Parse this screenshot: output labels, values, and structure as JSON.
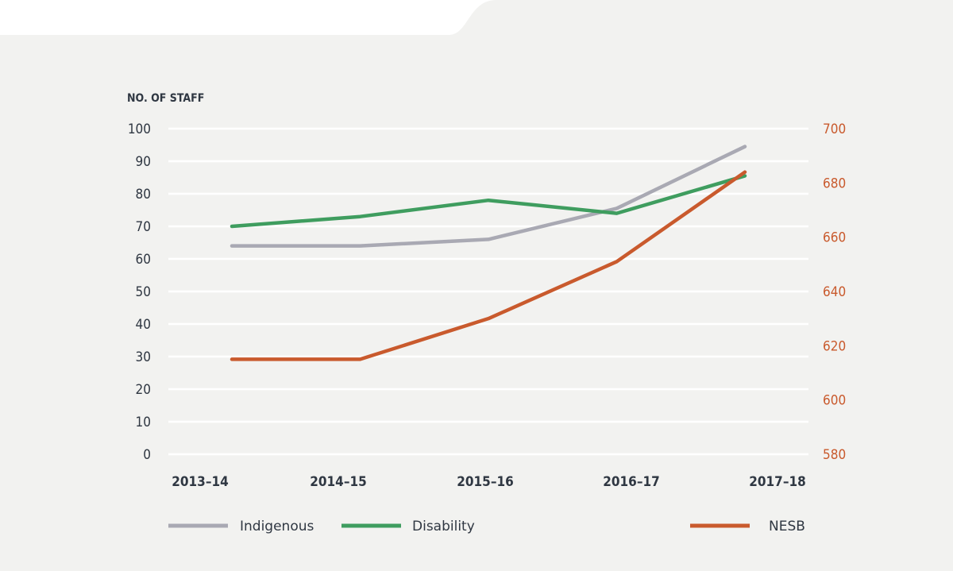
{
  "chart_data": {
    "type": "line",
    "title": "",
    "ylabel_left": "NO. OF STAFF",
    "xlabel": "",
    "categories": [
      "2013–14",
      "2014–15",
      "2015–16",
      "2016–17",
      "2017–18"
    ],
    "ylim_left": [
      0,
      100
    ],
    "yticks_left": [
      "100",
      "90",
      "80",
      "70",
      "60",
      "50",
      "40",
      "30",
      "20",
      "10",
      "0"
    ],
    "ylim_right": [
      580,
      700
    ],
    "yticks_right": [
      "700",
      "680",
      "660",
      "640",
      "620",
      "600",
      "580"
    ],
    "grid": true,
    "series": [
      {
        "name": "Indigenous",
        "axis": "left",
        "color": "#a9a9b3",
        "values": [
          64,
          64,
          66,
          75.5,
          94.5
        ]
      },
      {
        "name": "Disability",
        "axis": "left",
        "color": "#3f9d5f",
        "values": [
          70,
          73,
          78,
          74,
          85.5
        ]
      },
      {
        "name": "NESB",
        "axis": "right",
        "color": "#c95a2d",
        "values": [
          615,
          615,
          630,
          651,
          684
        ]
      }
    ],
    "legend": {
      "position": "bottom"
    }
  },
  "colors": {
    "background": "#f2f2f0",
    "grid": "#ffffff",
    "text": "#2f3742",
    "right_axis": "#c95a2d"
  }
}
